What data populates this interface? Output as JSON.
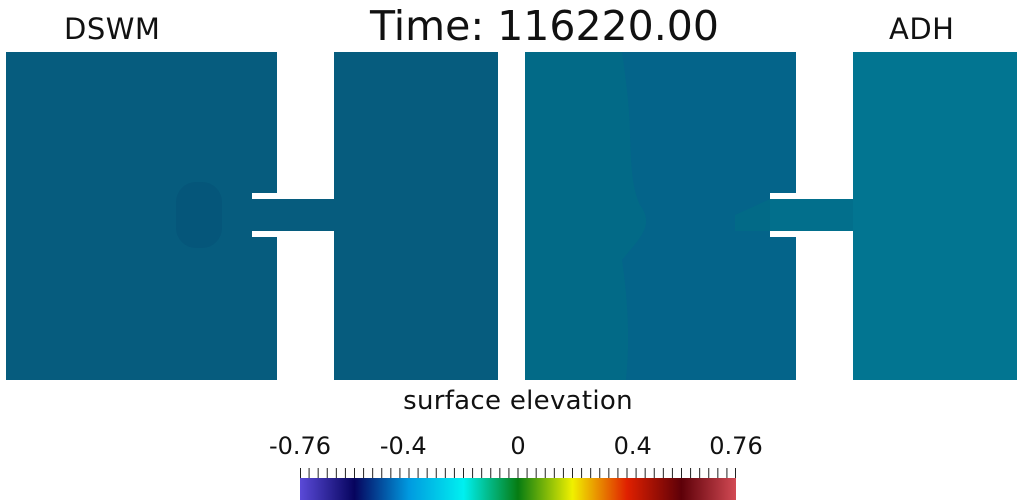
{
  "header": {
    "left_model_label": "DSWM",
    "right_model_label": "ADH",
    "time_prefix": "Time:",
    "time_value": "116220.00"
  },
  "colors": {
    "left_basin": "#065c7e",
    "left_basin_dark": "#05567a",
    "left_channel": "#065c7e",
    "right_basin_left": "#026a87",
    "right_basin_left_dark": "#04648a",
    "right_basin_right": "#027591",
    "right_channel": "#026f8c",
    "background": "#ffffff"
  },
  "legend": {
    "title": "surface elevation",
    "tick_labels": [
      "-0.76",
      "-0.4",
      "0",
      "0.4",
      "0.76"
    ],
    "tick_values": [
      -0.76,
      -0.4,
      0,
      0.4,
      0.76
    ],
    "min": -0.76,
    "max": 0.76,
    "colormap": [
      "#5a4ad8",
      "#06045e",
      "#009ae0",
      "#00f0f0",
      "#067c12",
      "#f0f000",
      "#e02000",
      "#5e0008",
      "#d24a54"
    ]
  }
}
